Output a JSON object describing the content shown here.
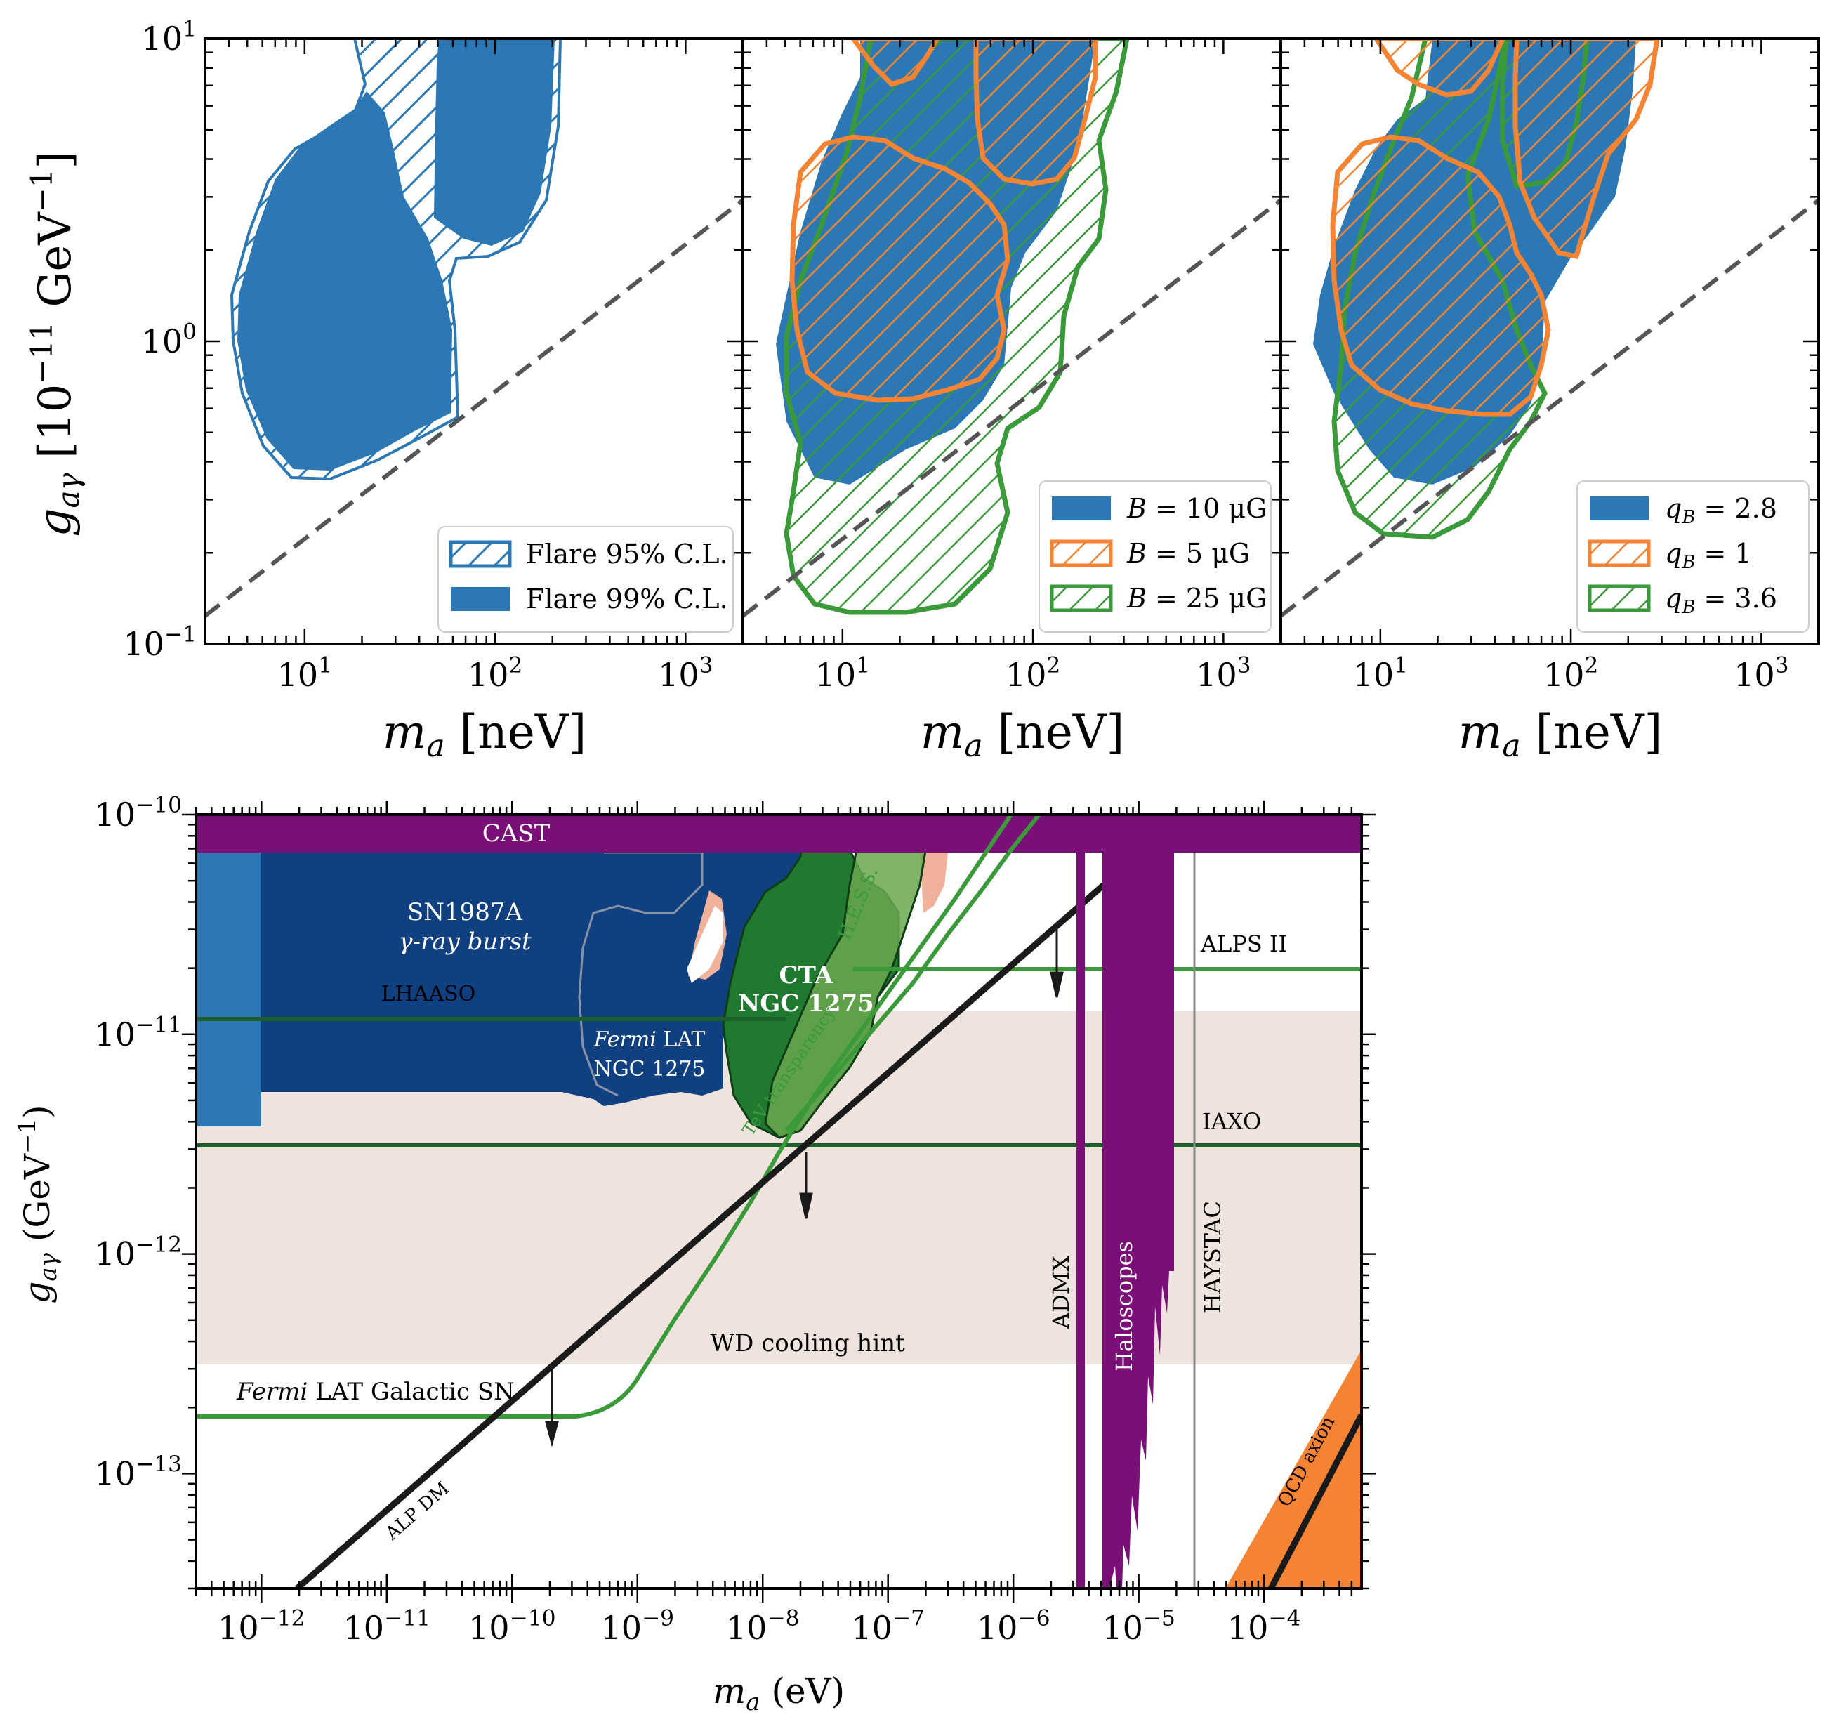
{
  "colors": {
    "blue": "#2b78b5",
    "orange": "#f58334",
    "green": "#3a9a3a",
    "purple": "#7b0f78",
    "navy": "#10407f",
    "darkgreen": "#1d5f2a",
    "wd_band": "#efe3de",
    "salmon": "#f0b29b"
  },
  "chart_data": [
    {
      "type": "area",
      "panel": "top-left",
      "xscale": "log",
      "yscale": "log",
      "xlim": [
        3,
        2000
      ],
      "ylim": [
        0.1,
        10
      ],
      "xlabel": "m_a [neV]",
      "ylabel": "g_aγ [10^-11 GeV^-1]",
      "x_tick_labels": [
        "10^1",
        "10^2",
        "10^3"
      ],
      "y_tick_labels": [
        "10^-1",
        "10^0",
        "10^1"
      ],
      "legend_position": "lower-right",
      "legend": [
        {
          "label": "Flare 95% C.L.",
          "style": "hatched",
          "color": "#2b78b5"
        },
        {
          "label": "Flare 99% C.L.",
          "style": "filled",
          "color": "#2b78b5"
        }
      ],
      "reference_line": {
        "style": "dashed",
        "from": [
          3,
          0.13
        ],
        "to": [
          2000,
          3.0
        ]
      }
    },
    {
      "type": "area",
      "panel": "top-middle",
      "xscale": "log",
      "yscale": "log",
      "xlim": [
        3,
        2000
      ],
      "ylim": [
        0.1,
        10
      ],
      "xlabel": "m_a [neV]",
      "x_tick_labels": [
        "10^1",
        "10^2",
        "10^3"
      ],
      "legend_position": "lower-right",
      "legend": [
        {
          "label_var": "B",
          "label_value": " = 10 μG",
          "style": "filled",
          "color": "#2b78b5"
        },
        {
          "label_var": "B",
          "label_value": " = 5 μG",
          "style": "hatched",
          "color": "#f58334"
        },
        {
          "label_var": "B",
          "label_value": " = 25 μG",
          "style": "hatched",
          "color": "#3a9a3a"
        }
      ]
    },
    {
      "type": "area",
      "panel": "top-right",
      "xscale": "log",
      "yscale": "log",
      "xlim": [
        3,
        2000
      ],
      "ylim": [
        0.1,
        10
      ],
      "xlabel": "m_a [neV]",
      "x_tick_labels": [
        "10^1",
        "10^2",
        "10^3"
      ],
      "legend_position": "lower-right",
      "legend": [
        {
          "label_var": "q",
          "label_sub": "B",
          "label_value": " = 2.8",
          "style": "filled",
          "color": "#2b78b5"
        },
        {
          "label_var": "q",
          "label_sub": "B",
          "label_value": " = 1",
          "style": "hatched",
          "color": "#f58334"
        },
        {
          "label_var": "q",
          "label_sub": "B",
          "label_value": " = 3.6",
          "style": "hatched",
          "color": "#3a9a3a"
        }
      ]
    },
    {
      "type": "area",
      "panel": "bottom",
      "xscale": "log",
      "yscale": "log",
      "xlim": [
        3e-13,
        0.0006
      ],
      "ylim": [
        3e-14,
        1e-10
      ],
      "xlabel": "m_a (eV)",
      "ylabel": "g_aγ (GeV^-1)",
      "x_tick_labels": [
        "10^-12",
        "10^-11",
        "10^-10",
        "10^-9",
        "10^-8",
        "10^-7",
        "10^-6",
        "10^-5",
        "10^-4"
      ],
      "y_tick_labels": [
        "10^-10",
        "10^-11",
        "10^-12",
        "10^-13"
      ],
      "regions": [
        {
          "name": "CAST",
          "limit": 6.6e-11
        },
        {
          "name": "ALPS II",
          "limit": 2e-11
        },
        {
          "name": "IAXO",
          "limit": 3.2e-12
        },
        {
          "name": "LHAASO",
          "limit": 1.2e-11
        },
        {
          "name": "Fermi LAT Galactic SN",
          "limit": 1.8e-13
        },
        {
          "name": "WD cooling hint",
          "range": [
            3.2e-13,
            1.3e-11
          ]
        }
      ],
      "labels": {
        "cast": "CAST",
        "sn_line1": "SN1987A",
        "sn_line2": "γ-ray burst",
        "lhaaso": "LHAASO",
        "fermi_italic": "Fermi",
        "fermi_rest": " LAT",
        "fermi_ngc": "NGC 1275",
        "cta_line1": "CTA",
        "cta_line2": "NGC 1275",
        "hess": "H.E.S.S.",
        "tev": "TeV transparency",
        "alps": "ALPS II",
        "iaxo": "IAXO",
        "admx": "ADMX",
        "haloscopes": "Haloscopes",
        "haystac": "HAYSTAC",
        "wd": "WD cooling hint",
        "fermi_gal_italic": "Fermi",
        "fermi_gal_rest": " LAT Galactic SN",
        "alp_dm": "ALP DM",
        "qcd": "QCD axion"
      }
    }
  ]
}
